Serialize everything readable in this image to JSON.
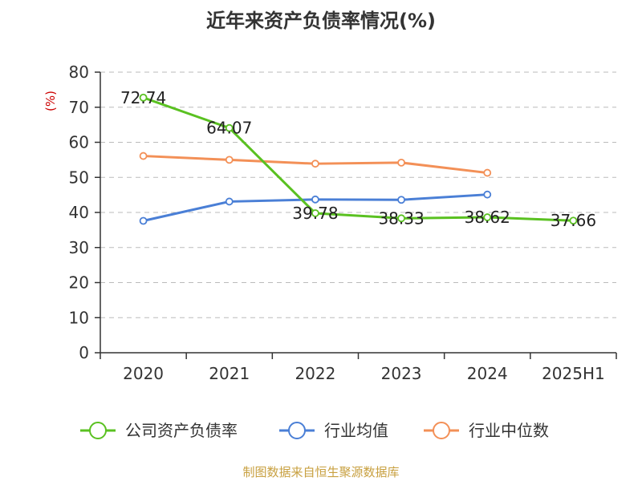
{
  "source": "制图数据来自恒生聚源数据库",
  "chart_data": {
    "type": "line",
    "title": "近年来资产负债率情况(%)",
    "ylabel": "(%)",
    "xlabel": "",
    "categories": [
      "2020",
      "2021",
      "2022",
      "2023",
      "2024",
      "2025H1"
    ],
    "ylim": [
      0,
      80
    ],
    "yticks": [
      0,
      10,
      20,
      30,
      40,
      50,
      60,
      70,
      80
    ],
    "grid": true,
    "legend_position": "bottom",
    "series": [
      {
        "name": "公司资产负债率",
        "color": "#5ac121",
        "values": [
          72.74,
          64.07,
          39.78,
          38.33,
          38.62,
          37.66
        ],
        "labels": [
          "72.74",
          "64.07",
          "39.78",
          "38.33",
          "38.62",
          "37.66"
        ]
      },
      {
        "name": "行业均值",
        "color": "#4a7fd6",
        "values": [
          37.6,
          43.1,
          43.7,
          43.6,
          45.1,
          null
        ]
      },
      {
        "name": "行业中位数",
        "color": "#f39057",
        "values": [
          56.1,
          55.0,
          53.9,
          54.2,
          51.3,
          null
        ]
      }
    ]
  }
}
